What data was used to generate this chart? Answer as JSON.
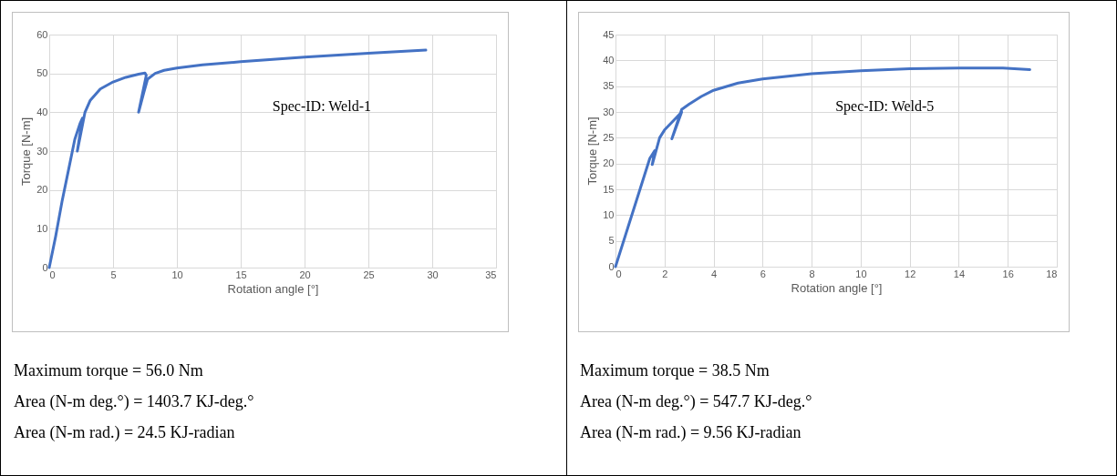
{
  "chart_data": [
    {
      "type": "line",
      "xlabel": "Rotation angle [°]",
      "ylabel": "Torque [N-m]",
      "xlim": [
        0,
        35
      ],
      "xticks": [
        0,
        5,
        10,
        15,
        20,
        25,
        30,
        35
      ],
      "ylim": [
        0,
        60
      ],
      "yticks": [
        0,
        10,
        20,
        30,
        40,
        50,
        60
      ],
      "grid": true,
      "marker": "none",
      "line_style": "solid",
      "series": [
        {
          "color": "#4472c4",
          "x": [
            0,
            0.5,
            1,
            1.5,
            2,
            2.4,
            2.6,
            2.2,
            2.5,
            2.8,
            3.2,
            4,
            5,
            6,
            7,
            7.5,
            7.6,
            7.0,
            7.4,
            7.7,
            8.3,
            9,
            10,
            12,
            15,
            20,
            25,
            29.5
          ],
          "values": [
            0,
            8,
            17,
            25,
            33,
            37,
            38.5,
            30,
            35,
            40,
            43,
            46,
            47.8,
            49,
            49.8,
            50.1,
            49.5,
            40,
            45,
            48.5,
            50,
            50.8,
            51.4,
            52.2,
            53,
            54.2,
            55.2,
            56
          ]
        }
      ],
      "annotations": [
        "Spec-ID: Weld-1",
        "Maximum torque = 56.0 Nm",
        "Area (N-m deg.°) = 1403.7 KJ-deg.°",
        "Area (N-m rad.) = 24.5 KJ-radian"
      ]
    },
    {
      "type": "line",
      "xlabel": "Rotation angle [°]",
      "ylabel": "Torque [N-m]",
      "xlim": [
        0,
        18
      ],
      "xticks": [
        0,
        2,
        4,
        6,
        8,
        10,
        12,
        14,
        16,
        18
      ],
      "ylim": [
        0,
        45
      ],
      "yticks": [
        0,
        5,
        10,
        15,
        20,
        25,
        30,
        35,
        40,
        45
      ],
      "grid": true,
      "marker": "none",
      "line_style": "solid",
      "series": [
        {
          "color": "#4472c4",
          "x": [
            0,
            0.5,
            1,
            1.4,
            1.6,
            1.5,
            1.8,
            2,
            2.5,
            2.7,
            2.3,
            2.7,
            3,
            3.5,
            4,
            5,
            6,
            8,
            10,
            12,
            14,
            15.8,
            16.9
          ],
          "values": [
            0,
            7.5,
            15,
            21,
            22.5,
            19.8,
            25,
            26.5,
            29,
            30,
            24.8,
            30.5,
            31.5,
            33,
            34.2,
            35.6,
            36.4,
            37.4,
            38,
            38.4,
            38.5,
            38.5,
            38.2
          ]
        }
      ],
      "annotations": [
        "Spec-ID: Weld-5",
        "Maximum torque = 38.5 Nm",
        "Area (N-m deg.°) = 547.7 KJ-deg.°",
        "Area (N-m rad.) = 9.56 KJ-radian"
      ]
    }
  ]
}
